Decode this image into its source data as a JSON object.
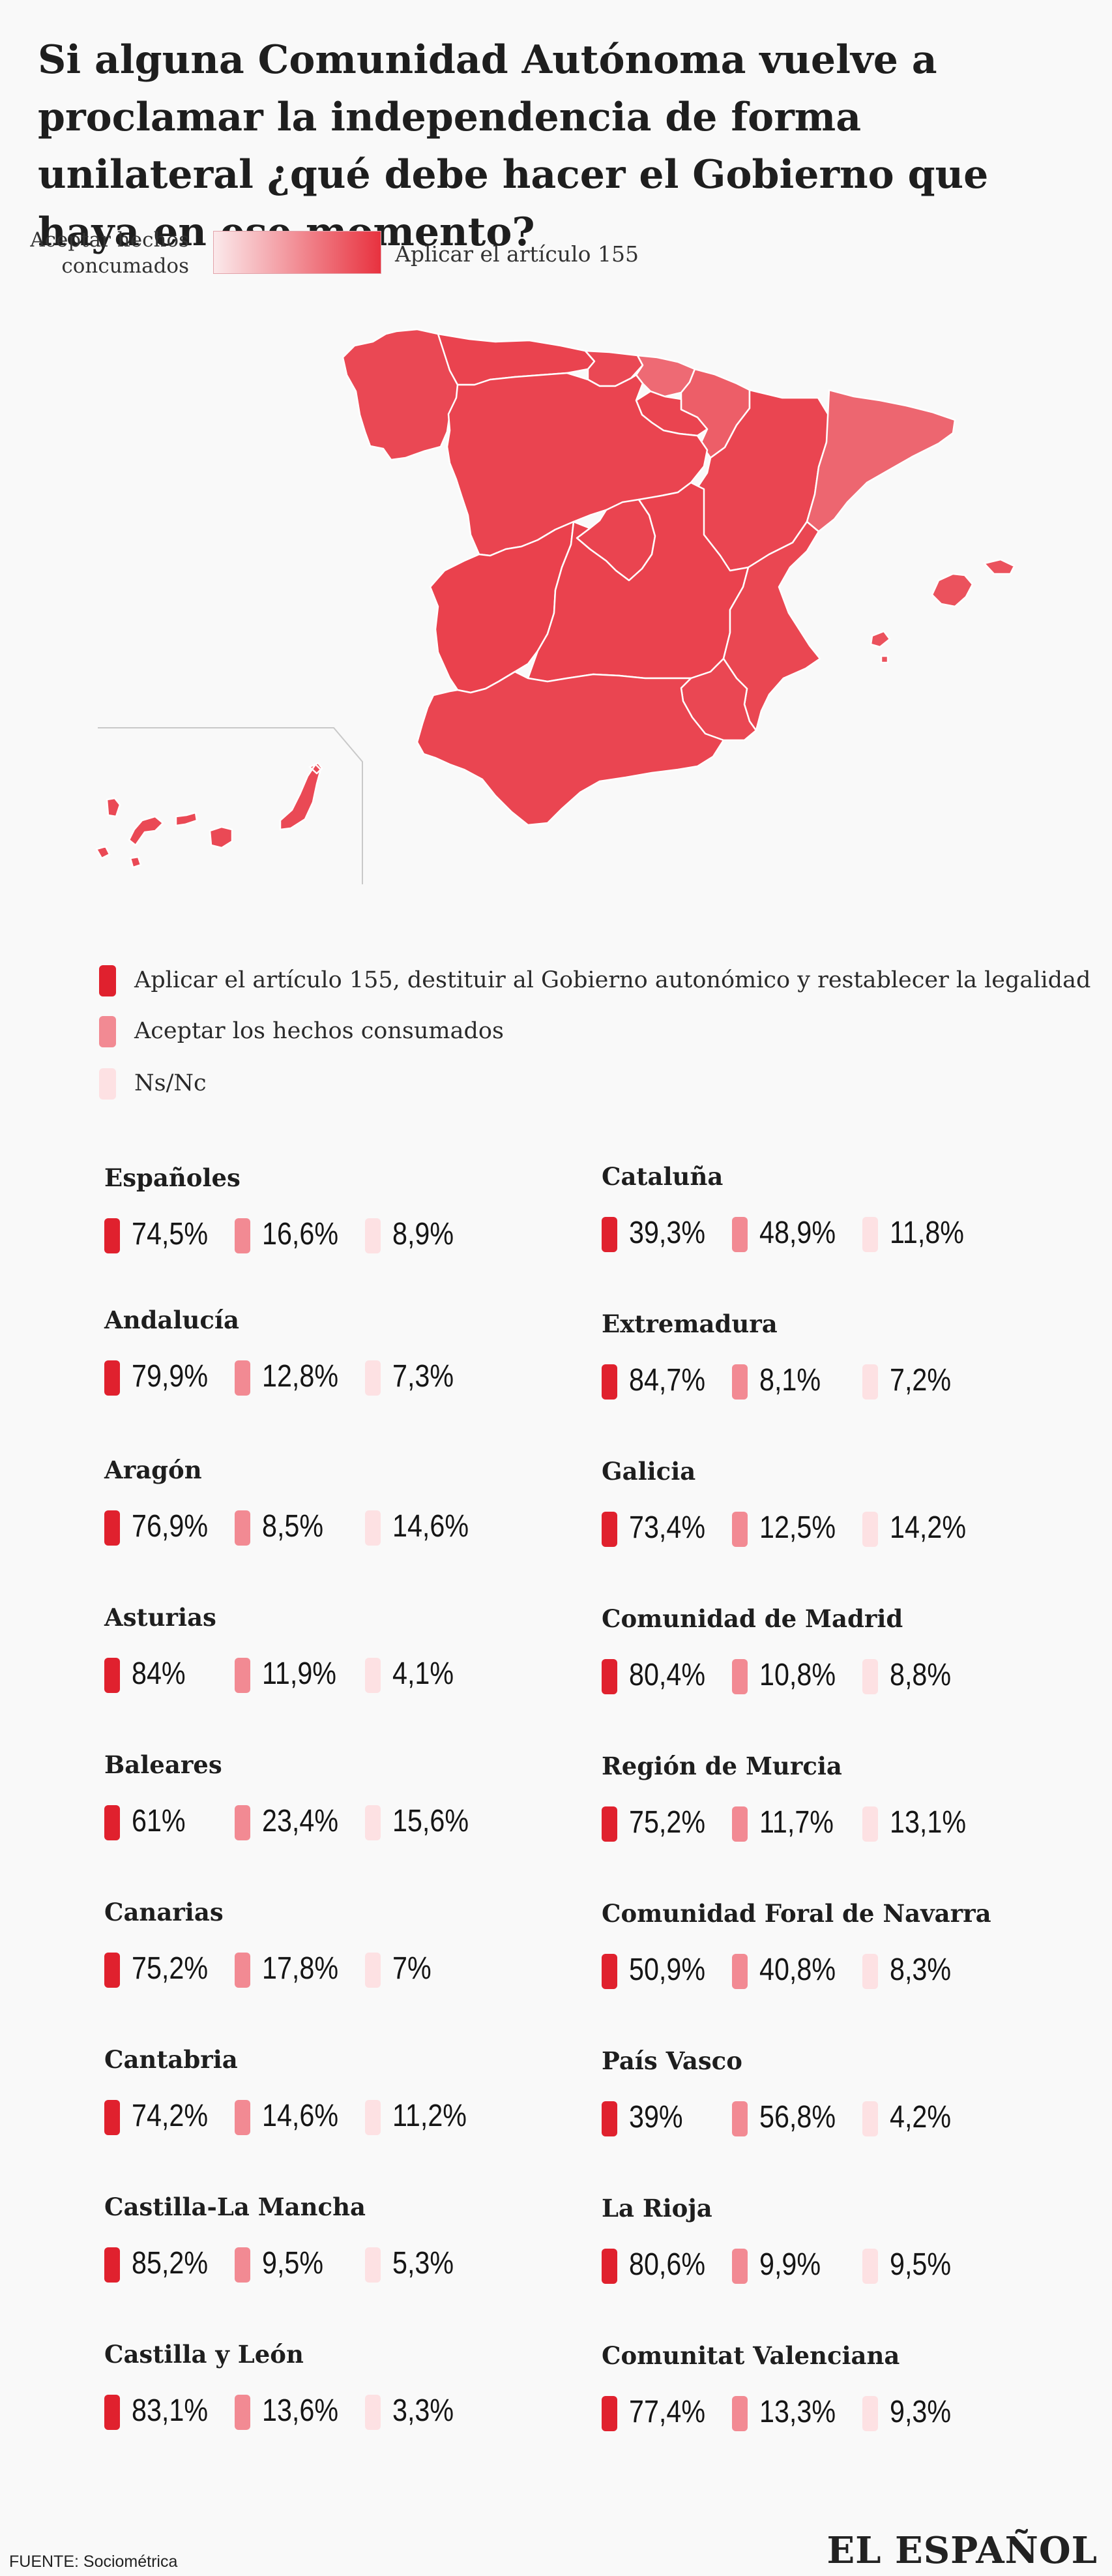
{
  "title": "Si alguna Comunidad Autónoma vuelve a proclamar la independencia de forma unilateral ¿qué debe hacer el Gobierno que haya en ese momento?",
  "scale": {
    "low_label": "Aceptar hechos concumados",
    "high_label": "Aplicar el artículo 155",
    "low_color": "#fbe9eb",
    "high_color": "#e8323f"
  },
  "colors": {
    "apply155": "#e0212e",
    "accept": "#f28a93",
    "nsnc": "#fde1e3",
    "map_border": "#ffffff"
  },
  "legend": [
    {
      "key": "apply155",
      "label": "Aplicar el artículo 155, destituir al Gobierno autonómico y restablecer la legalidad"
    },
    {
      "key": "accept",
      "label": "Aceptar los hechos consumados"
    },
    {
      "key": "nsnc",
      "label": "Ns/Nc"
    }
  ],
  "chart_data": {
    "type": "choropleth",
    "series": [
      {
        "key": "apply155",
        "name": "Aplicar el artículo 155, destituir al Gobierno autonómico y restablecer la legalidad"
      },
      {
        "key": "accept",
        "name": "Aceptar los hechos consumados"
      },
      {
        "key": "nsnc",
        "name": "Ns/Nc"
      }
    ],
    "regions": [
      {
        "name": "Españoles",
        "apply155": "74,5%",
        "accept": "16,6%",
        "nsnc": "8,9%"
      },
      {
        "name": "Andalucía",
        "apply155": "79,9%",
        "accept": "12,8%",
        "nsnc": "7,3%"
      },
      {
        "name": "Aragón",
        "apply155": "76,9%",
        "accept": "8,5%",
        "nsnc": "14,6%"
      },
      {
        "name": "Asturias",
        "apply155": "84%",
        "accept": "11,9%",
        "nsnc": "4,1%"
      },
      {
        "name": "Baleares",
        "apply155": "61%",
        "accept": "23,4%",
        "nsnc": "15,6%"
      },
      {
        "name": "Canarias",
        "apply155": "75,2%",
        "accept": "17,8%",
        "nsnc": "7%"
      },
      {
        "name": "Cantabria",
        "apply155": "74,2%",
        "accept": "14,6%",
        "nsnc": "11,2%"
      },
      {
        "name": "Castilla-La Mancha",
        "apply155": "85,2%",
        "accept": "9,5%",
        "nsnc": "5,3%"
      },
      {
        "name": "Castilla y León",
        "apply155": "83,1%",
        "accept": "13,6%",
        "nsnc": "3,3%"
      },
      {
        "name": "Cataluña",
        "apply155": "39,3%",
        "accept": "48,9%",
        "nsnc": "11,8%"
      },
      {
        "name": "Extremadura",
        "apply155": "84,7%",
        "accept": "8,1%",
        "nsnc": "7,2%"
      },
      {
        "name": "Galicia",
        "apply155": "73,4%",
        "accept": "12,5%",
        "nsnc": "14,2%"
      },
      {
        "name": "Comunidad de Madrid",
        "apply155": "80,4%",
        "accept": "10,8%",
        "nsnc": "8,8%"
      },
      {
        "name": "Región de Murcia",
        "apply155": "75,2%",
        "accept": "11,7%",
        "nsnc": "13,1%"
      },
      {
        "name": "Comunidad Foral de Navarra",
        "apply155": "50,9%",
        "accept": "40,8%",
        "nsnc": "8,3%"
      },
      {
        "name": "País Vasco",
        "apply155": "39%",
        "accept": "56,8%",
        "nsnc": "4,2%"
      },
      {
        "name": "La Rioja",
        "apply155": "80,6%",
        "accept": "9,9%",
        "nsnc": "9,5%"
      },
      {
        "name": "Comunitat Valenciana",
        "apply155": "77,4%",
        "accept": "13,3%",
        "nsnc": "9,3%"
      }
    ]
  },
  "source": "FUENTE: Sociométrica",
  "brand": "EL ESPAÑOL"
}
